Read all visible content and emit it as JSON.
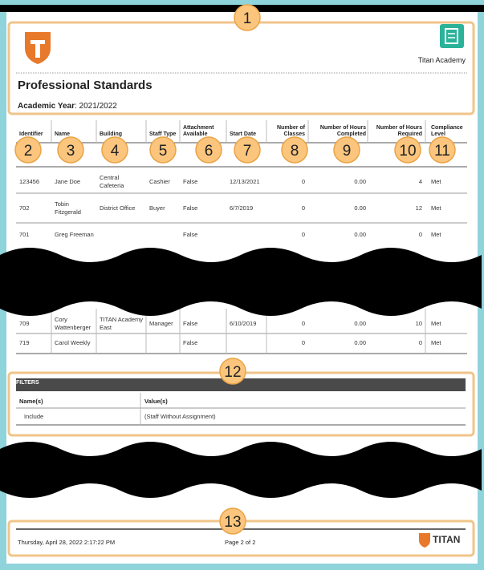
{
  "callouts": [
    "1",
    "2",
    "3",
    "4",
    "5",
    "6",
    "7",
    "8",
    "9",
    "10",
    "11",
    "12",
    "13"
  ],
  "header": {
    "school": "Titan Academy",
    "title": "Professional Standards",
    "year_label": "Academic Year",
    "year_value": "2021/2022"
  },
  "table": {
    "columns": [
      "Identifier",
      "Name",
      "Building",
      "Staff Type",
      "Attachment Available",
      "Start Date",
      "Number of Classes",
      "Number of Hours Completed",
      "Number of Hours Required",
      "Compliance Level"
    ],
    "rows": [
      [
        "123456",
        "Jane Doe",
        "Central Cafeteria",
        "Cashier",
        "False",
        "12/13/2021",
        "0",
        "0.00",
        "4",
        "Met"
      ],
      [
        "702",
        "Tobin Fitzgerald",
        "District Office",
        "Buyer",
        "False",
        "6/7/2019",
        "0",
        "0.00",
        "12",
        "Met"
      ],
      [
        "701",
        "Greg Freeman",
        null,
        null,
        "False",
        null,
        "0",
        "0.00",
        "0",
        "Met"
      ],
      [
        "709",
        "Cory Wattenberger",
        "TITAN Academy East",
        "Manager",
        "False",
        "6/10/2019",
        "0",
        "0.00",
        "10",
        "Met"
      ],
      [
        "719",
        "Carol Weekly",
        null,
        null,
        "False",
        null,
        "0",
        "0.00",
        "0",
        "Met"
      ]
    ]
  },
  "filters": {
    "title": "FILTERS",
    "headers": [
      "Name(s)",
      "Value(s)"
    ],
    "rows": [
      [
        "Include",
        "(Staff Without Assignment)"
      ]
    ]
  },
  "footer": {
    "timestamp": "Thursday, April 28, 2022 2:17:22 PM",
    "page": "Page 2 of 2",
    "logo": "TITAN"
  }
}
